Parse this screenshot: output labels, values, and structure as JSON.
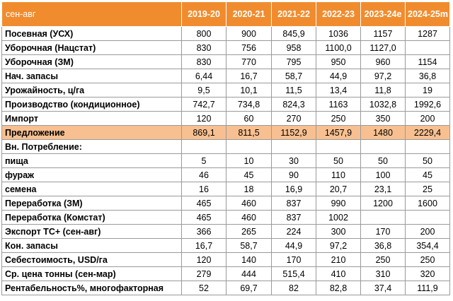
{
  "table": {
    "header": [
      "сен-авг",
      "2019-20",
      "2020-21",
      "2021-22",
      "2022-23",
      "2023-24e",
      "2024-25m"
    ],
    "rows": [
      {
        "label": "Посевная (УСХ)",
        "values": [
          "800",
          "900",
          "845,9",
          "1036",
          "1157",
          "1287"
        ],
        "highlight": false
      },
      {
        "label": "Уборочная (Нацстат)",
        "values": [
          "830",
          "756",
          "958",
          "1100,0",
          "1127,0",
          ""
        ],
        "highlight": false
      },
      {
        "label": "Уборочная (ЗМ)",
        "values": [
          "830",
          "770",
          "795",
          "950",
          "960",
          "1154"
        ],
        "highlight": false
      },
      {
        "label": "Нач. запасы",
        "values": [
          "6,44",
          "16,7",
          "58,7",
          "44,9",
          "97,2",
          "36,8"
        ],
        "highlight": false
      },
      {
        "label": "Урожайность, ц/га",
        "values": [
          "9,5",
          "10,1",
          "11,5",
          "13,4",
          "11,8",
          "19"
        ],
        "highlight": false
      },
      {
        "label": "Производство (кондиционное)",
        "values": [
          "742,7",
          "734,8",
          "824,3",
          "1163",
          "1032,8",
          "1992,6"
        ],
        "highlight": false
      },
      {
        "label": "Импорт",
        "values": [
          "120",
          "60",
          "270",
          "250",
          "350",
          "200"
        ],
        "highlight": false
      },
      {
        "label": "Предложение",
        "values": [
          "869,1",
          "811,5",
          "1152,9",
          "1457,9",
          "1480",
          "2229,4"
        ],
        "highlight": true
      },
      {
        "label": "Вн. Потребление:",
        "values": [
          "",
          "",
          "",
          "",
          "",
          ""
        ],
        "highlight": false
      },
      {
        "label": "пища",
        "values": [
          "5",
          "10",
          "30",
          "50",
          "50",
          "50"
        ],
        "highlight": false
      },
      {
        "label": "фураж",
        "values": [
          "46",
          "45",
          "90",
          "110",
          "100",
          "45"
        ],
        "highlight": false
      },
      {
        "label": "семена",
        "values": [
          "16",
          "18",
          "16,9",
          "20,7",
          "23,1",
          "25"
        ],
        "highlight": false
      },
      {
        "label": "Переработка (ЗМ)",
        "values": [
          "465",
          "460",
          "837",
          "990",
          "1200",
          "1600"
        ],
        "highlight": false
      },
      {
        "label": "Переработка (Комстат)",
        "values": [
          "465",
          "460",
          "837",
          "1002",
          "",
          ""
        ],
        "highlight": false
      },
      {
        "label": "Экспорт ТС+ (сен-авг)",
        "values": [
          "366",
          "265",
          "224",
          "300",
          "170",
          "200"
        ],
        "highlight": false
      },
      {
        "label": "Кон. запасы",
        "values": [
          "16,7",
          "58,7",
          "44,9",
          "97,2",
          "36,8",
          "354,4"
        ],
        "highlight": false
      },
      {
        "label": "Себестоимость, USD/га",
        "values": [
          "120",
          "140",
          "170",
          "210",
          "250",
          "250"
        ],
        "highlight": false
      },
      {
        "label": "Ср. цена тонны (сен-мар)",
        "values": [
          "279",
          "444",
          "515,4",
          "410",
          "310",
          "320"
        ],
        "highlight": false
      },
      {
        "label": "Рентабельность%, многофакторная",
        "values": [
          "52",
          "69,7",
          "82",
          "82,8",
          "37,4",
          "111,9"
        ],
        "highlight": false
      }
    ]
  },
  "colors": {
    "header_bg": "#f08c2e",
    "header_text": "#ffffff",
    "highlight_row": "#f8c090",
    "grid": "#9a9a9a"
  }
}
